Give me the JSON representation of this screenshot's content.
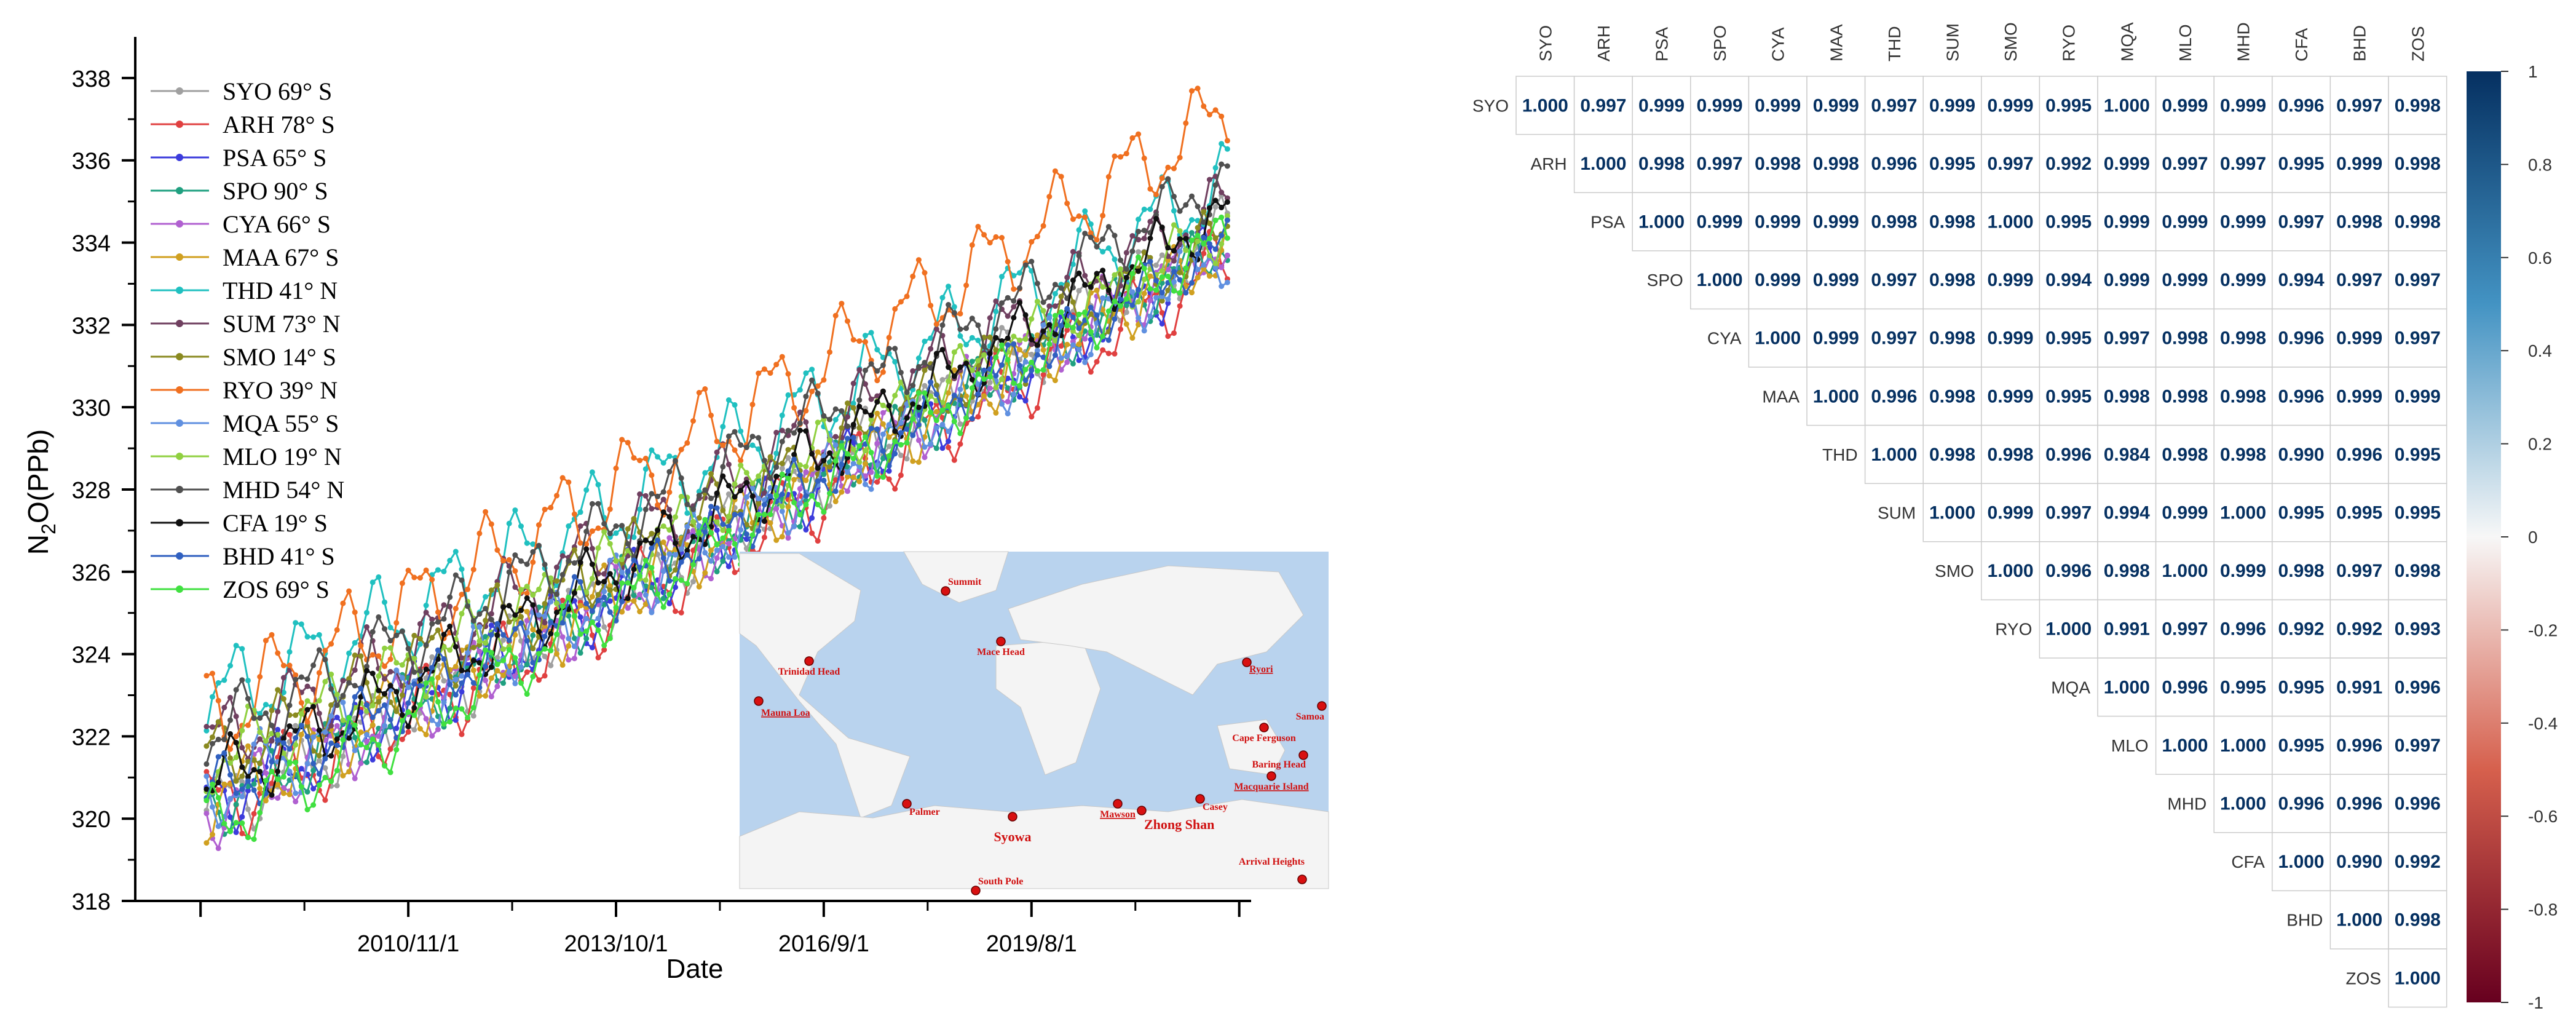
{
  "chart_data": [
    {
      "type": "line",
      "xlabel": "Date",
      "ylabel": "N2O(PPb)",
      "ylabel_main": "N",
      "ylabel_sub": "2",
      "ylabel_rest": "O(PPb)",
      "ylim": [
        318,
        339
      ],
      "yticks": [
        318,
        320,
        322,
        324,
        326,
        328,
        330,
        332,
        334,
        336,
        338
      ],
      "ytick_labels": [
        "318",
        "320",
        "322",
        "324",
        "326",
        "328",
        "330",
        "332",
        "334",
        "336",
        "338"
      ],
      "xlim": [
        "2007-01",
        "2022-09"
      ],
      "xticks": [
        "2010-11-01",
        "2013-10-01",
        "2016-09-01",
        "2019-08-01"
      ],
      "xtick_labels": [
        "2010/11/1",
        "2013/10/1",
        "2016/9/1",
        "2019/8/1"
      ],
      "x_start": "2008-01",
      "x_end": "2022-05",
      "x_step": "monthly",
      "legend_position": "top-left",
      "grid": false,
      "series": [
        {
          "name": "SYO 69° S",
          "color": "#a0a0a0",
          "start": 320.2,
          "end": 334.3,
          "amp": 0.5
        },
        {
          "name": "ARH 78° S",
          "color": "#e04040",
          "start": 320.2,
          "end": 333.5,
          "amp": 0.6
        },
        {
          "name": "PSA 65° S",
          "color": "#3c3cdc",
          "start": 320.4,
          "end": 333.9,
          "amp": 0.5
        },
        {
          "name": "SPO 90° S",
          "color": "#20a080",
          "start": 320.3,
          "end": 334.0,
          "amp": 0.4
        },
        {
          "name": "CYA 66° S",
          "color": "#b060d0",
          "start": 320.2,
          "end": 334.1,
          "amp": 0.5
        },
        {
          "name": "MAA 67° S",
          "color": "#d0a020",
          "start": 320.4,
          "end": 333.9,
          "amp": 0.5
        },
        {
          "name": "THD 41° N",
          "color": "#20c0c0",
          "start": 322.8,
          "end": 335.5,
          "amp": 0.8
        },
        {
          "name": "SUM 73° N",
          "color": "#704060",
          "start": 321.8,
          "end": 335.0,
          "amp": 0.6
        },
        {
          "name": "SMO 14° S",
          "color": "#8a8a20",
          "start": 321.4,
          "end": 334.2,
          "amp": 0.6
        },
        {
          "name": "RYO 39° N",
          "color": "#f07020",
          "start": 322.5,
          "end": 337.2,
          "amp": 0.9
        },
        {
          "name": "MQA 55° S",
          "color": "#6090e0",
          "start": 320.6,
          "end": 333.8,
          "amp": 0.6
        },
        {
          "name": "MLO 19° N",
          "color": "#90d040",
          "start": 321.4,
          "end": 334.4,
          "amp": 0.5
        },
        {
          "name": "MHD 54° N",
          "color": "#505050",
          "start": 322.0,
          "end": 335.6,
          "amp": 0.6
        },
        {
          "name": "CFA 19° S",
          "color": "#101010",
          "start": 320.8,
          "end": 334.8,
          "amp": 0.6
        },
        {
          "name": "BHD 41° S",
          "color": "#3060c0",
          "start": 320.6,
          "end": 334.0,
          "amp": 0.5
        },
        {
          "name": "ZOS 69° S",
          "color": "#40e040",
          "start": 319.8,
          "end": 334.2,
          "amp": 0.6
        }
      ]
    },
    {
      "type": "heatmap",
      "labels": [
        "SYO",
        "ARH",
        "PSA",
        "SPO",
        "CYA",
        "MAA",
        "THD",
        "SUM",
        "SMO",
        "RYO",
        "MQA",
        "MLO",
        "MHD",
        "CFA",
        "BHD",
        "ZOS"
      ],
      "matrix": [
        [
          "1.000",
          "0.997",
          "0.999",
          "0.999",
          "0.999",
          "0.999",
          "0.997",
          "0.999",
          "0.999",
          "0.995",
          "1.000",
          "0.999",
          "0.999",
          "0.996",
          "0.997",
          "0.998"
        ],
        [
          "1.000",
          "0.998",
          "0.997",
          "0.998",
          "0.998",
          "0.996",
          "0.995",
          "0.997",
          "0.992",
          "0.999",
          "0.997",
          "0.997",
          "0.995",
          "0.999",
          "0.998"
        ],
        [
          "1.000",
          "0.999",
          "0.999",
          "0.999",
          "0.998",
          "0.998",
          "1.000",
          "0.995",
          "0.999",
          "0.999",
          "0.999",
          "0.997",
          "0.998",
          "0.998"
        ],
        [
          "1.000",
          "0.999",
          "0.999",
          "0.997",
          "0.998",
          "0.999",
          "0.994",
          "0.999",
          "0.999",
          "0.999",
          "0.994",
          "0.997",
          "0.997"
        ],
        [
          "1.000",
          "0.999",
          "0.997",
          "0.998",
          "0.999",
          "0.995",
          "0.997",
          "0.998",
          "0.998",
          "0.996",
          "0.999",
          "0.997"
        ],
        [
          "1.000",
          "0.996",
          "0.998",
          "0.999",
          "0.995",
          "0.998",
          "0.998",
          "0.998",
          "0.996",
          "0.999",
          "0.999"
        ],
        [
          "1.000",
          "0.998",
          "0.998",
          "0.996",
          "0.984",
          "0.998",
          "0.998",
          "0.990",
          "0.996",
          "0.995"
        ],
        [
          "1.000",
          "0.999",
          "0.997",
          "0.994",
          "0.999",
          "1.000",
          "0.995",
          "0.995",
          "0.995"
        ],
        [
          "1.000",
          "0.996",
          "0.998",
          "1.000",
          "0.999",
          "0.998",
          "0.997",
          "0.998"
        ],
        [
          "1.000",
          "0.991",
          "0.997",
          "0.996",
          "0.992",
          "0.992",
          "0.993"
        ],
        [
          "1.000",
          "0.996",
          "0.995",
          "0.995",
          "0.991",
          "0.996"
        ],
        [
          "1.000",
          "1.000",
          "0.995",
          "0.996",
          "0.997"
        ],
        [
          "1.000",
          "0.996",
          "0.996",
          "0.996"
        ],
        [
          "1.000",
          "0.990",
          "0.992"
        ],
        [
          "1.000",
          "0.998"
        ],
        [
          "1.000"
        ]
      ],
      "colorbar_ticks": [
        "1",
        "0.8",
        "0.6",
        "0.4",
        "0.2",
        "0",
        "-0.2",
        "-0.4",
        "-0.6",
        "-0.8",
        "-1"
      ],
      "color_low": "#67001f",
      "color_mid": "#f7f7f7",
      "color_high": "#053061"
    }
  ],
  "inset_map": {
    "stations": [
      {
        "name": "Summit",
        "underline": false
      },
      {
        "name": "Mace Head",
        "underline": false
      },
      {
        "name": "Trinidad Head",
        "underline": false
      },
      {
        "name": "Mauna Loa",
        "underline": true
      },
      {
        "name": "Ryori",
        "underline": true
      },
      {
        "name": "Samoa",
        "underline": false
      },
      {
        "name": "Cape Ferguson",
        "underline": false
      },
      {
        "name": "Baring Head",
        "underline": false
      },
      {
        "name": "Macquarie Island",
        "underline": true
      },
      {
        "name": "Palmer",
        "underline": false
      },
      {
        "name": "Syowa",
        "underline": false
      },
      {
        "name": "Mawson",
        "underline": true
      },
      {
        "name": "Zhong Shan",
        "underline": false
      },
      {
        "name": "Casey",
        "underline": false
      },
      {
        "name": "Arrival Heights",
        "underline": false
      },
      {
        "name": "South Pole",
        "underline": false
      }
    ]
  }
}
